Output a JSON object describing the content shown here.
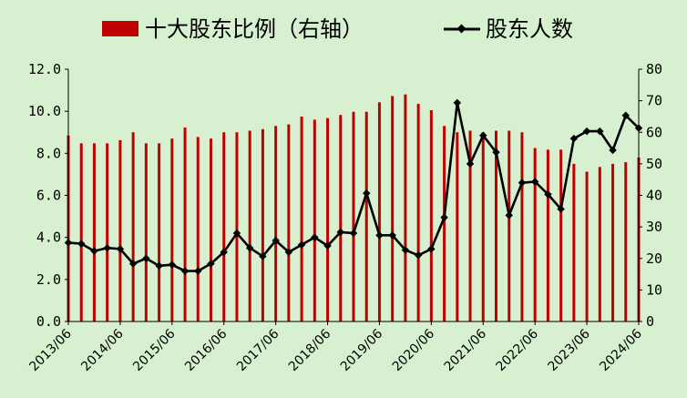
{
  "chart_data": {
    "type": "bar+line",
    "legend": {
      "bar_label": "十大股东比例（右轴）",
      "line_label": "股东人数",
      "placement": "top"
    },
    "colors": {
      "bar": "#c00000",
      "line": "#000000",
      "background": "#d7f0cf"
    },
    "left_axis": {
      "ylim": [
        0,
        12
      ],
      "ticks": [
        "0.0",
        "2.0",
        "4.0",
        "6.0",
        "8.0",
        "10.0",
        "12.0"
      ]
    },
    "right_axis": {
      "ylim": [
        0,
        80
      ],
      "ticks": [
        "0",
        "10",
        "20",
        "30",
        "40",
        "50",
        "60",
        "70",
        "80"
      ]
    },
    "x_tick_labels": [
      "2013/06",
      "2014/06",
      "2015/06",
      "2016/06",
      "2017/06",
      "2018/06",
      "2019/06",
      "2020/06",
      "2021/06",
      "2022/06",
      "2023/06",
      "2024/06"
    ],
    "bar_series": {
      "name": "十大股东比例（右轴）",
      "axis": "right",
      "values": [
        59,
        56.5,
        56.5,
        56.5,
        57.5,
        60,
        56.5,
        56.5,
        58,
        61.5,
        58.5,
        58,
        60,
        60,
        60.5,
        61,
        62,
        62.5,
        65,
        64,
        64.5,
        65.5,
        66.5,
        66.5,
        69.5,
        71.5,
        72,
        69,
        67,
        62,
        60,
        60.5,
        60,
        60.5,
        60.5,
        60,
        55,
        54.5,
        54.5,
        50,
        47.5,
        49,
        50,
        50.5,
        52
      ]
    },
    "line_series": {
      "name": "股东人数",
      "axis": "left",
      "values": [
        3.75,
        3.7,
        3.35,
        3.5,
        3.45,
        2.75,
        3.0,
        2.65,
        2.7,
        2.4,
        2.4,
        2.75,
        3.3,
        4.2,
        3.5,
        3.1,
        3.85,
        3.3,
        3.65,
        4.0,
        3.6,
        4.25,
        4.2,
        6.1,
        4.1,
        4.1,
        3.4,
        3.15,
        3.45,
        4.95,
        10.4,
        7.5,
        8.85,
        8.05,
        5.05,
        6.6,
        6.65,
        6.05,
        5.35,
        8.7,
        9.05,
        9.05,
        8.15,
        9.8,
        9.2
      ]
    }
  }
}
